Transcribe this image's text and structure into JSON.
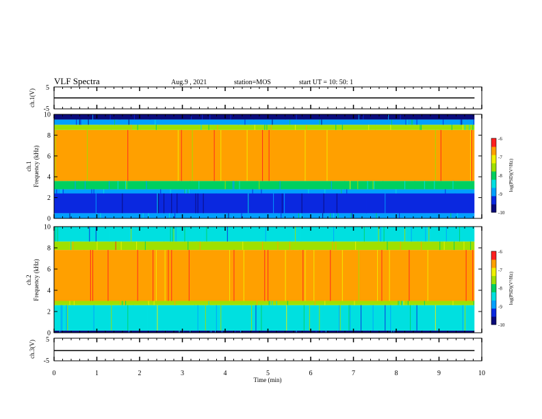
{
  "header": {
    "title": "VLF Spectra",
    "date": "Aug.9 , 2021",
    "station": "station=MOS",
    "start": "start UT = 10: 50: 1"
  },
  "colors": {
    "colormap": [
      "#0a0a7a",
      "#0a28e0",
      "#00a0ff",
      "#00e0e0",
      "#00d060",
      "#a0e000",
      "#f0f000",
      "#ffa000",
      "#ff2020"
    ],
    "trace": "#000000",
    "axis": "#000000"
  },
  "chart_data": [
    {
      "type": "line",
      "name": "ch1-waveform",
      "ylabel": "ch.1(V)",
      "ylim": [
        -5,
        5
      ],
      "yticks": [
        "5",
        "-5"
      ],
      "xlim": [
        0,
        10
      ],
      "baseline": 0
    },
    {
      "type": "heatmap",
      "name": "ch1-spectrogram",
      "ylabel_line1": "ch.1",
      "ylabel_line2": "Frequency (kHz)",
      "ylim": [
        0,
        10
      ],
      "yticks": [
        0,
        2,
        4,
        6,
        8,
        10
      ],
      "xlim": [
        0,
        10
      ],
      "data_end_min": 9.83,
      "bands": [
        {
          "from_khz": 0,
          "to_khz": 0.5,
          "level": -9.0
        },
        {
          "from_khz": 0.5,
          "to_khz": 2.4,
          "level": -9.7
        },
        {
          "from_khz": 2.4,
          "to_khz": 2.8,
          "level": -8.8
        },
        {
          "from_khz": 2.8,
          "to_khz": 3.6,
          "level": -8.0
        },
        {
          "from_khz": 3.6,
          "to_khz": 8.5,
          "level": -6.7
        },
        {
          "from_khz": 8.5,
          "to_khz": 9.0,
          "level": -7.6
        },
        {
          "from_khz": 9.0,
          "to_khz": 9.5,
          "level": -9.0
        },
        {
          "from_khz": 9.5,
          "to_khz": 10,
          "level": -9.9
        }
      ],
      "colorbar": {
        "label": "log(PSD)(V²/Hz)",
        "range": [
          -10,
          -6
        ],
        "ticks": [
          "-6",
          "-7",
          "-8",
          "-9",
          "-10"
        ]
      }
    },
    {
      "type": "heatmap",
      "name": "ch2-spectrogram",
      "ylabel_line1": "ch.2",
      "ylabel_line2": "Frequency (kHz)",
      "ylim": [
        0,
        10
      ],
      "yticks": [
        0,
        2,
        4,
        6,
        8,
        10
      ],
      "xlim": [
        0,
        10
      ],
      "data_end_min": 9.83,
      "bands": [
        {
          "from_khz": 0,
          "to_khz": 0.2,
          "level": -9.8
        },
        {
          "from_khz": 0.2,
          "to_khz": 2.6,
          "level": -8.3
        },
        {
          "from_khz": 2.6,
          "to_khz": 3.0,
          "level": -7.4
        },
        {
          "from_khz": 3.0,
          "to_khz": 7.8,
          "level": -6.3
        },
        {
          "from_khz": 7.8,
          "to_khz": 8.6,
          "level": -7.3
        },
        {
          "from_khz": 8.6,
          "to_khz": 10,
          "level": -8.3
        }
      ],
      "colorbar": {
        "label": "log(PSD)(V²/Hz)",
        "range": [
          -10,
          -6
        ],
        "ticks": [
          "-6",
          "-7",
          "-8",
          "-9",
          "-10"
        ]
      }
    },
    {
      "type": "line",
      "name": "ch3-waveform",
      "ylabel": "ch.3(V)",
      "ylim": [
        -5,
        5
      ],
      "yticks": [
        "5",
        "-5"
      ],
      "xlim": [
        0,
        10
      ],
      "baseline": 0
    }
  ],
  "xaxis": {
    "label": "Time (min)",
    "ticks": [
      "0",
      "1",
      "2",
      "3",
      "4",
      "5",
      "6",
      "7",
      "8",
      "9",
      "10"
    ]
  }
}
